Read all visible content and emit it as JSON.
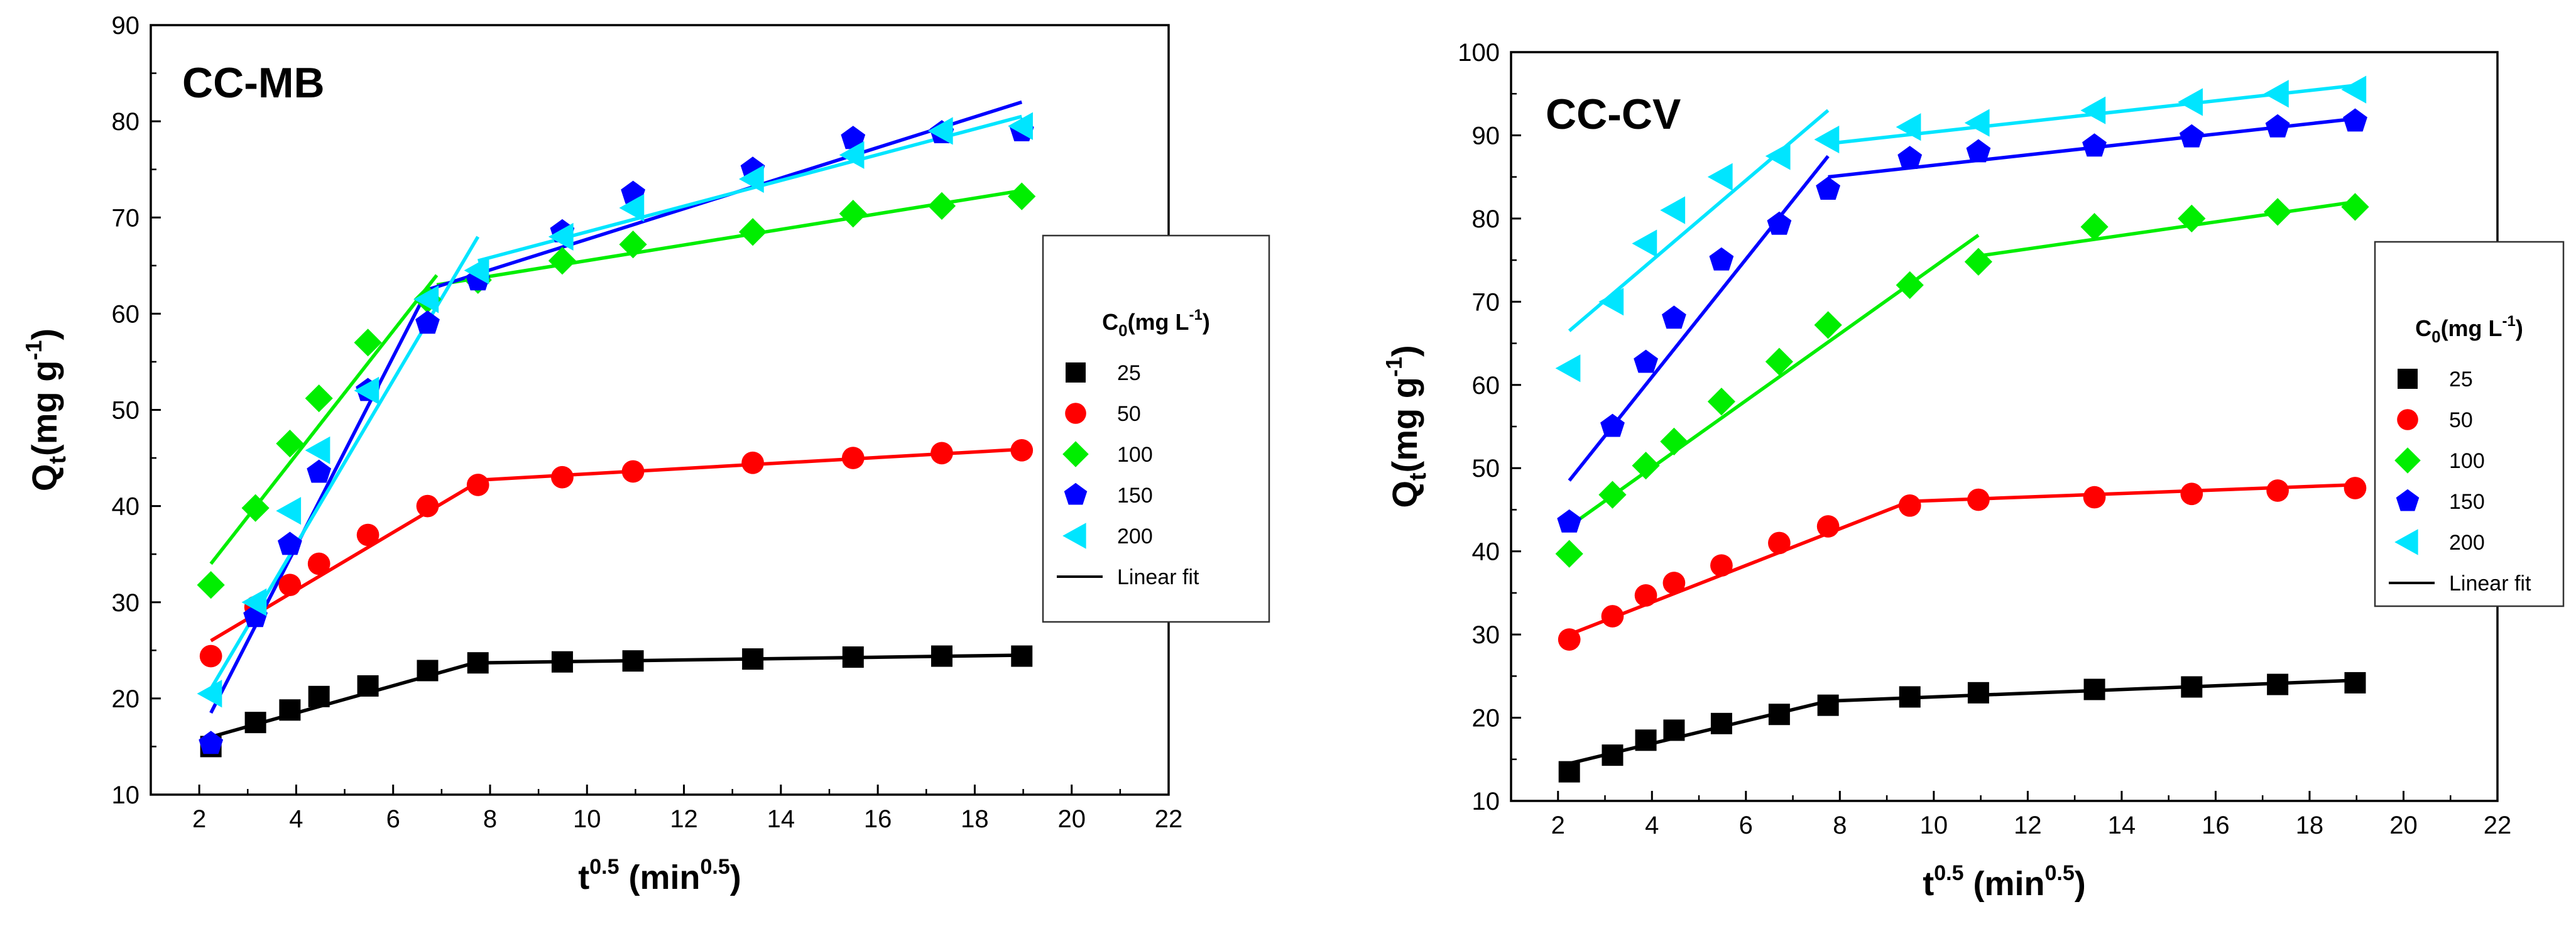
{
  "chart_data": [
    {
      "type": "scatter",
      "title": "CC-MB",
      "xlabel": "t^0.5 (min^0.5)",
      "xlabel_main": "t",
      "xlabel_sup": "0.5",
      "xlabel_rest": " (min",
      "xlabel_sup2": "0.5",
      "xlabel_close": ")",
      "ylabel": "Qt(mg g-1)",
      "ylabel_main": "Q",
      "ylabel_sub": "t",
      "ylabel_unit": "(mg g",
      "ylabel_sup": "-1",
      "ylabel_close": ")",
      "xlim": [
        1,
        22
      ],
      "ylim": [
        10,
        90
      ],
      "xticks": [
        2,
        4,
        6,
        8,
        10,
        12,
        14,
        16,
        18,
        20,
        22
      ],
      "yticks": [
        10,
        20,
        30,
        40,
        50,
        60,
        70,
        80,
        90
      ],
      "legend": {
        "title_main": "C",
        "title_sub": "0",
        "title_unit": "(mg L",
        "title_sup": "-1",
        "title_close": ")",
        "fit_label": "Linear fit"
      },
      "x": [
        2.24,
        3.16,
        3.87,
        4.47,
        5.48,
        6.71,
        7.75,
        9.49,
        10.95,
        13.42,
        15.49,
        17.32,
        18.97
      ],
      "series": [
        {
          "name": "25",
          "marker": "square",
          "color": "#000000",
          "values": [
            15.0,
            17.5,
            18.8,
            20.2,
            21.3,
            22.9,
            23.7,
            23.8,
            23.9,
            24.1,
            24.3,
            24.4,
            24.4
          ],
          "fits": [
            [
              [
                2.24,
                16.0
              ],
              [
                7.75,
                23.8
              ]
            ],
            [
              [
                7.75,
                23.7
              ],
              [
                18.97,
                24.5
              ]
            ]
          ]
        },
        {
          "name": "50",
          "marker": "circle",
          "color": "#ff0000",
          "values": [
            24.4,
            29.5,
            31.8,
            34.0,
            37.0,
            40.0,
            42.2,
            43.0,
            43.6,
            44.5,
            45.0,
            45.5,
            45.8
          ],
          "fits": [
            [
              [
                2.24,
                26.0
              ],
              [
                7.75,
                42.5
              ]
            ],
            [
              [
                7.75,
                42.7
              ],
              [
                18.97,
                45.9
              ]
            ]
          ]
        },
        {
          "name": "100",
          "marker": "diamond",
          "color": "#00ee00",
          "values": [
            31.8,
            39.8,
            46.5,
            51.2,
            57.0,
            61.5,
            63.5,
            65.5,
            67.2,
            68.5,
            70.4,
            71.2,
            72.2
          ],
          "fits": [
            [
              [
                2.24,
                34.0
              ],
              [
                6.9,
                64.0
              ]
            ],
            [
              [
                6.9,
                63.0
              ],
              [
                18.97,
                72.8
              ]
            ]
          ]
        },
        {
          "name": "150",
          "marker": "pentagon",
          "color": "#0000ff",
          "values": [
            15.3,
            28.5,
            36.0,
            43.5,
            52.0,
            59.0,
            63.5,
            68.5,
            72.5,
            75.0,
            78.2,
            78.8,
            79.0
          ],
          "fits": [
            [
              [
                2.24,
                18.5
              ],
              [
                6.71,
                62.5
              ]
            ],
            [
              [
                6.71,
                62.5
              ],
              [
                18.97,
                82.0
              ]
            ]
          ]
        },
        {
          "name": "200",
          "marker": "triangle-left",
          "color": "#00e5ff",
          "values": [
            20.5,
            30.0,
            39.5,
            45.8,
            52.0,
            61.5,
            64.5,
            68.0,
            71.0,
            74.0,
            76.5,
            79.0,
            79.5
          ],
          "fits": [
            [
              [
                2.24,
                21.0
              ],
              [
                7.75,
                68.0
              ]
            ],
            [
              [
                7.75,
                65.5
              ],
              [
                18.97,
                80.5
              ]
            ]
          ]
        }
      ]
    },
    {
      "type": "scatter",
      "title": "CC-CV",
      "xlabel": "t^0.5 (min^0.5)",
      "xlabel_main": "t",
      "xlabel_sup": "0.5",
      "xlabel_rest": " (min",
      "xlabel_sup2": "0.5",
      "xlabel_close": ")",
      "ylabel": "Qt(mg g-1)",
      "ylabel_main": "Q",
      "ylabel_sub": "t",
      "ylabel_unit": "(mg g",
      "ylabel_sup": "-1",
      "ylabel_close": ")",
      "xlim": [
        1,
        22
      ],
      "ylim": [
        10,
        100
      ],
      "xticks": [
        2,
        4,
        6,
        8,
        10,
        12,
        14,
        16,
        18,
        20,
        22
      ],
      "yticks": [
        10,
        20,
        30,
        40,
        50,
        60,
        70,
        80,
        90,
        100
      ],
      "legend": {
        "title_main": "C",
        "title_sub": "0",
        "title_unit": "(mg L",
        "title_sup": "-1",
        "title_close": ")",
        "fit_label": "Linear fit"
      },
      "x": [
        2.24,
        3.16,
        3.87,
        4.47,
        5.48,
        6.71,
        7.75,
        9.49,
        10.95,
        13.42,
        15.49,
        17.32,
        18.97
      ],
      "series": [
        {
          "name": "25",
          "marker": "square",
          "color": "#000000",
          "values": [
            13.5,
            15.5,
            17.3,
            18.5,
            19.3,
            20.4,
            21.5,
            22.5,
            23.0,
            23.4,
            23.7,
            24.0,
            24.2
          ],
          "fits": [
            [
              [
                2.24,
                14.5
              ],
              [
                7.75,
                22.0
              ]
            ],
            [
              [
                7.75,
                22.0
              ],
              [
                18.97,
                24.5
              ]
            ]
          ]
        },
        {
          "name": "50",
          "marker": "circle",
          "color": "#ff0000",
          "values": [
            29.4,
            32.2,
            34.7,
            36.2,
            38.3,
            41.0,
            43.0,
            45.5,
            46.2,
            46.5,
            46.9,
            47.3,
            47.6
          ],
          "fits": [
            [
              [
                2.24,
                30.0
              ],
              [
                9.49,
                46.0
              ]
            ],
            [
              [
                9.49,
                46.0
              ],
              [
                18.97,
                48.0
              ]
            ]
          ]
        },
        {
          "name": "100",
          "marker": "diamond",
          "color": "#00ee00",
          "values": [
            39.7,
            46.8,
            50.3,
            53.2,
            58.0,
            62.8,
            67.2,
            72.0,
            74.8,
            79.0,
            80.0,
            80.8,
            81.4
          ],
          "fits": [
            [
              [
                2.24,
                43.0
              ],
              [
                10.95,
                78.0
              ]
            ],
            [
              [
                10.95,
                75.5
              ],
              [
                18.97,
                82.0
              ]
            ]
          ]
        },
        {
          "name": "150",
          "marker": "pentagon",
          "color": "#0000ff",
          "values": [
            43.5,
            55.0,
            62.7,
            68.0,
            75.0,
            79.3,
            83.5,
            87.2,
            88.0,
            88.7,
            89.8,
            91.0,
            91.7
          ],
          "fits": [
            [
              [
                2.24,
                48.5
              ],
              [
                7.75,
                87.5
              ]
            ],
            [
              [
                7.75,
                85.0
              ],
              [
                18.97,
                92.0
              ]
            ]
          ]
        },
        {
          "name": "200",
          "marker": "triangle-left",
          "color": "#00e5ff",
          "values": [
            62.0,
            70.0,
            77.0,
            81.0,
            85.0,
            87.5,
            89.5,
            91.0,
            91.5,
            93.0,
            94.0,
            95.0,
            95.5
          ],
          "fits": [
            [
              [
                2.24,
                66.5
              ],
              [
                7.75,
                93.0
              ]
            ],
            [
              [
                7.75,
                89.0
              ],
              [
                18.97,
                96.0
              ]
            ]
          ]
        }
      ]
    }
  ]
}
